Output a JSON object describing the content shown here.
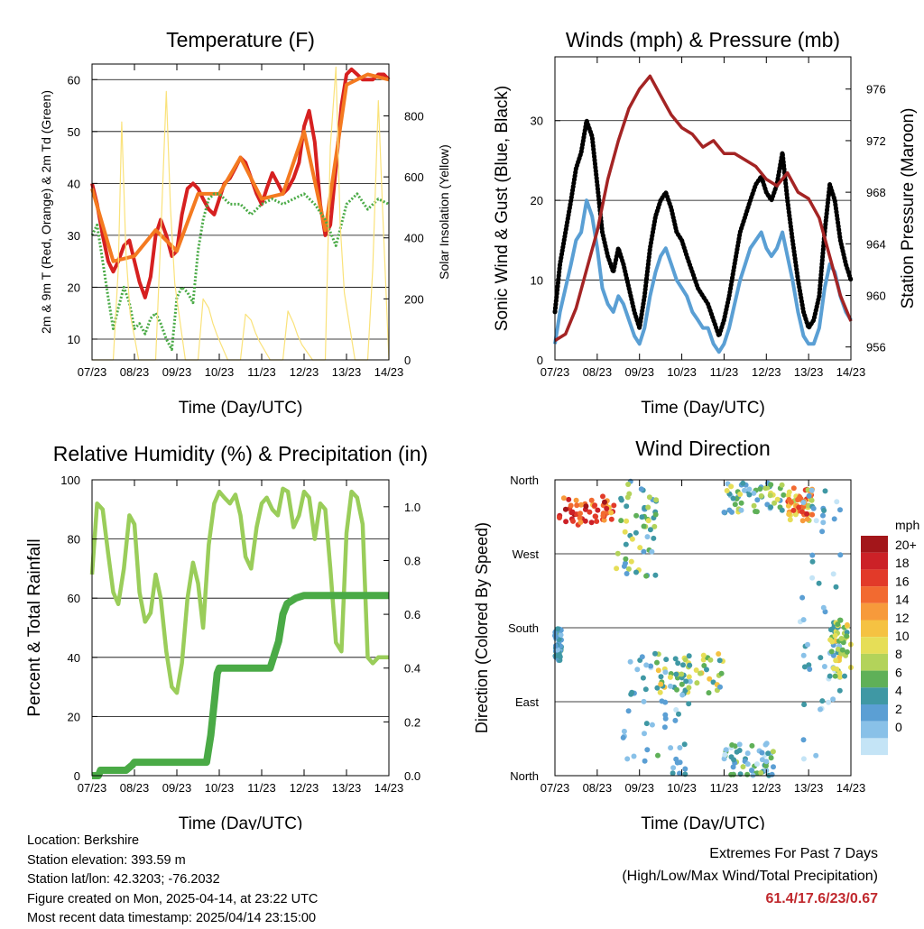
{
  "chart_data": [
    {
      "type": "line",
      "title": "Temperature (F)",
      "xlabel": "Time (Day/UTC)",
      "ylabel": "2m & 9m T (Red, Orange) & 2m Td (Green)",
      "ylabel_right": "Solar Insolation (Yellow)",
      "x_ticks": [
        "07/23",
        "08/23",
        "09/23",
        "10/23",
        "11/23",
        "12/23",
        "13/23",
        "14/23"
      ],
      "ylim": [
        6,
        63
      ],
      "y_ticks": [
        10,
        20,
        30,
        40,
        50,
        60
      ],
      "ylim_right": [
        0,
        970
      ],
      "y_ticks_right": [
        0,
        200,
        400,
        600,
        800
      ],
      "grid": true,
      "series": [
        {
          "name": "2m T",
          "color": "#d62020",
          "x": [
            0,
            0.12,
            0.25,
            0.38,
            0.5,
            0.62,
            0.75,
            0.88,
            1.0,
            1.12,
            1.25,
            1.38,
            1.5,
            1.62,
            1.75,
            1.88,
            2.0,
            2.12,
            2.25,
            2.38,
            2.5,
            2.62,
            2.75,
            2.88,
            3.0,
            3.12,
            3.25,
            3.38,
            3.5,
            3.62,
            3.75,
            3.88,
            4.0,
            4.12,
            4.25,
            4.38,
            4.5,
            4.62,
            4.75,
            4.88,
            5.0,
            5.12,
            5.25,
            5.38,
            5.5,
            5.62,
            5.75,
            5.88,
            6.0,
            6.12,
            6.25,
            6.38,
            6.5,
            6.62,
            6.75,
            6.88,
            7.0
          ],
          "values": [
            40,
            36,
            30,
            25,
            23,
            25,
            28,
            29,
            25,
            21,
            18,
            22,
            30,
            33,
            30,
            26,
            27,
            34,
            39,
            40,
            39,
            37,
            35,
            34,
            37,
            40,
            41,
            43,
            45,
            44,
            41,
            38,
            36,
            39,
            42,
            40,
            38,
            39,
            41,
            44,
            51,
            54,
            48,
            36,
            30,
            32,
            43,
            55,
            61,
            62,
            61,
            60,
            60,
            60,
            61,
            61,
            60
          ]
        },
        {
          "name": "9m T",
          "color": "#f47a20",
          "x": [
            0,
            0.5,
            1.0,
            1.5,
            2.0,
            2.5,
            3.0,
            3.5,
            4.0,
            4.5,
            5.0,
            5.5,
            6.0,
            6.5,
            7.0
          ],
          "values": [
            39,
            25,
            26,
            31,
            27,
            38,
            38,
            45,
            37,
            38,
            50,
            31,
            59,
            61,
            60
          ]
        },
        {
          "name": "2m Td",
          "color": "#4aaa46",
          "x": [
            0,
            0.12,
            0.25,
            0.38,
            0.5,
            0.62,
            0.75,
            0.88,
            1.0,
            1.12,
            1.25,
            1.38,
            1.5,
            1.62,
            1.75,
            1.88,
            2.0,
            2.12,
            2.25,
            2.38,
            2.5,
            2.62,
            2.75,
            2.88,
            3.0,
            3.25,
            3.5,
            3.75,
            4.0,
            4.25,
            4.5,
            4.75,
            5.0,
            5.25,
            5.5,
            5.75,
            6.0,
            6.25,
            6.5,
            6.75,
            7.0
          ],
          "values": [
            30,
            32,
            25,
            18,
            12,
            16,
            20,
            17,
            12,
            13,
            11,
            14,
            15,
            13,
            10,
            8,
            18,
            20,
            19,
            17,
            27,
            33,
            37,
            38,
            38,
            36,
            36,
            34,
            36,
            37,
            36,
            37,
            38,
            36,
            33,
            28,
            36,
            38,
            35,
            37,
            36
          ]
        },
        {
          "name": "Solar Insolation",
          "axis": "right",
          "color": "#fae27a",
          "x": [
            0,
            0.5,
            0.62,
            0.7,
            0.8,
            0.9,
            1.1,
            1.5,
            1.62,
            1.75,
            1.85,
            1.95,
            2.2,
            2.5,
            2.62,
            2.75,
            2.85,
            2.95,
            3.2,
            3.5,
            3.62,
            3.75,
            3.85,
            3.95,
            4.2,
            4.5,
            4.62,
            4.75,
            4.85,
            4.95,
            5.2,
            5.5,
            5.62,
            5.75,
            5.85,
            5.95,
            6.2,
            6.5,
            6.62,
            6.75,
            6.85,
            7.0
          ],
          "values": [
            0,
            0,
            300,
            780,
            350,
            150,
            0,
            0,
            400,
            880,
            500,
            250,
            0,
            0,
            200,
            170,
            120,
            80,
            0,
            0,
            150,
            130,
            90,
            60,
            0,
            0,
            160,
            120,
            80,
            50,
            0,
            0,
            700,
            960,
            450,
            220,
            0,
            0,
            300,
            850,
            500,
            0
          ]
        }
      ]
    },
    {
      "type": "line",
      "title": "Winds (mph) & Pressure (mb)",
      "xlabel": "Time (Day/UTC)",
      "ylabel": "Sonic Wind & Gust (Blue, Black)",
      "ylabel_right": "Station Pressure (Maroon)",
      "x_ticks": [
        "07/23",
        "08/23",
        "09/23",
        "10/23",
        "11/23",
        "12/23",
        "13/23",
        "14/23"
      ],
      "ylim": [
        0,
        38
      ],
      "y_ticks": [
        0,
        10,
        20,
        30
      ],
      "ylim_right": [
        955,
        978.5
      ],
      "y_ticks_right": [
        956,
        960,
        964,
        968,
        972,
        976
      ],
      "grid": true,
      "series": [
        {
          "name": "Sonic Wind",
          "color": "#5a9fd4",
          "x": [
            0,
            0.12,
            0.25,
            0.38,
            0.5,
            0.62,
            0.75,
            0.88,
            1.0,
            1.12,
            1.25,
            1.38,
            1.5,
            1.62,
            1.75,
            1.88,
            2.0,
            2.12,
            2.25,
            2.38,
            2.5,
            2.62,
            2.75,
            2.88,
            3.0,
            3.12,
            3.25,
            3.38,
            3.5,
            3.62,
            3.75,
            3.88,
            4.0,
            4.12,
            4.25,
            4.38,
            4.5,
            4.62,
            4.75,
            4.88,
            5.0,
            5.12,
            5.25,
            5.38,
            5.5,
            5.62,
            5.75,
            5.88,
            6.0,
            6.12,
            6.25,
            6.38,
            6.5,
            6.62,
            6.75,
            6.88,
            7.0
          ],
          "values": [
            2,
            6,
            9,
            12,
            15,
            16,
            20,
            18,
            14,
            9,
            7,
            6,
            8,
            7,
            5,
            3,
            2,
            4,
            8,
            11,
            13,
            14,
            12,
            10,
            9,
            8,
            6,
            5,
            4,
            4,
            2,
            1,
            2,
            4,
            7,
            10,
            12,
            14,
            15,
            16,
            14,
            13,
            14,
            16,
            13,
            10,
            6,
            3,
            2,
            2,
            4,
            9,
            12,
            11,
            8,
            6,
            5
          ]
        },
        {
          "name": "Gust",
          "color": "#000000",
          "x": [
            0,
            0.12,
            0.25,
            0.38,
            0.5,
            0.62,
            0.75,
            0.88,
            1.0,
            1.12,
            1.25,
            1.38,
            1.5,
            1.62,
            1.75,
            1.88,
            2.0,
            2.12,
            2.25,
            2.38,
            2.5,
            2.62,
            2.75,
            2.88,
            3.0,
            3.12,
            3.25,
            3.38,
            3.5,
            3.62,
            3.75,
            3.88,
            4.0,
            4.12,
            4.25,
            4.38,
            4.5,
            4.62,
            4.75,
            4.88,
            5.0,
            5.12,
            5.25,
            5.38,
            5.5,
            5.62,
            5.75,
            5.88,
            6.0,
            6.12,
            6.25,
            6.38,
            6.5,
            6.62,
            6.75,
            6.88,
            7.0
          ],
          "values": [
            6,
            12,
            16,
            20,
            24,
            26,
            30,
            28,
            22,
            16,
            13,
            11,
            14,
            12,
            9,
            6,
            4,
            8,
            14,
            18,
            20,
            21,
            19,
            16,
            15,
            13,
            11,
            9,
            8,
            7,
            5,
            3,
            5,
            8,
            12,
            16,
            18,
            20,
            22,
            23,
            21,
            20,
            22,
            26,
            20,
            15,
            10,
            6,
            4,
            5,
            8,
            16,
            22,
            20,
            15,
            12,
            10
          ]
        },
        {
          "name": "Station Pressure",
          "axis": "right",
          "color": "#a42424",
          "x": [
            0,
            0.25,
            0.5,
            0.75,
            1.0,
            1.25,
            1.5,
            1.75,
            2.0,
            2.25,
            2.5,
            2.75,
            3.0,
            3.25,
            3.5,
            3.75,
            4.0,
            4.25,
            4.5,
            4.75,
            5.0,
            5.25,
            5.5,
            5.75,
            6.0,
            6.25,
            6.5,
            6.75,
            7.0
          ],
          "values": [
            956.5,
            957,
            959,
            962,
            965,
            969,
            972,
            974.5,
            976,
            977,
            975.5,
            974,
            973,
            972.5,
            971.5,
            972,
            971,
            971,
            970.5,
            970,
            969,
            968.5,
            969.5,
            968,
            967.5,
            966,
            963,
            960,
            958
          ]
        }
      ]
    },
    {
      "type": "line",
      "title": "Relative Humidity (%) & Precipitation (in)",
      "xlabel": "Time (Day/UTC)",
      "ylabel": "Percent & Total Rainfall",
      "x_ticks": [
        "07/23",
        "08/23",
        "09/23",
        "10/23",
        "11/23",
        "12/23",
        "13/23",
        "14/23"
      ],
      "ylim": [
        0,
        100
      ],
      "y_ticks": [
        0,
        20,
        40,
        60,
        80,
        100
      ],
      "ylim_right": [
        0,
        1.1
      ],
      "y_ticks_right": [
        "0.0",
        "0.2",
        "0.4",
        "0.6",
        "0.8",
        "1.0"
      ],
      "grid": true,
      "series": [
        {
          "name": "Relative Humidity",
          "color": "#9acd5a",
          "x": [
            0,
            0.12,
            0.25,
            0.38,
            0.5,
            0.62,
            0.75,
            0.88,
            1.0,
            1.12,
            1.25,
            1.38,
            1.5,
            1.62,
            1.75,
            1.88,
            2.0,
            2.12,
            2.25,
            2.38,
            2.5,
            2.62,
            2.75,
            2.88,
            3.0,
            3.12,
            3.25,
            3.38,
            3.5,
            3.62,
            3.75,
            3.88,
            4.0,
            4.12,
            4.25,
            4.38,
            4.5,
            4.62,
            4.75,
            4.88,
            5.0,
            5.12,
            5.25,
            5.38,
            5.5,
            5.62,
            5.75,
            5.88,
            6.0,
            6.12,
            6.25,
            6.38,
            6.5,
            6.62,
            6.75,
            6.88,
            7.0
          ],
          "values": [
            68,
            92,
            90,
            75,
            62,
            58,
            70,
            88,
            85,
            62,
            52,
            55,
            68,
            60,
            42,
            30,
            28,
            38,
            60,
            72,
            65,
            50,
            78,
            92,
            96,
            94,
            92,
            95,
            88,
            74,
            70,
            84,
            92,
            94,
            90,
            88,
            97,
            96,
            84,
            88,
            96,
            94,
            80,
            92,
            90,
            70,
            45,
            42,
            82,
            96,
            94,
            85,
            40,
            38,
            40,
            40,
            40
          ]
        },
        {
          "name": "Total Rainfall",
          "axis": "right",
          "color": "#4aaa46",
          "x": [
            0,
            0.15,
            0.2,
            0.8,
            0.95,
            1.0,
            2.0,
            2.7,
            2.8,
            2.9,
            2.95,
            3.0,
            4.0,
            4.2,
            4.4,
            4.5,
            4.6,
            4.8,
            5.0,
            6.0,
            6.5,
            7.0
          ],
          "values": [
            0,
            0,
            0.02,
            0.02,
            0.04,
            0.05,
            0.05,
            0.05,
            0.15,
            0.3,
            0.38,
            0.4,
            0.4,
            0.4,
            0.5,
            0.6,
            0.64,
            0.66,
            0.67,
            0.67,
            0.67,
            0.67
          ]
        }
      ]
    },
    {
      "type": "scatter",
      "title": "Wind Direction",
      "xlabel": "Time (Day/UTC)",
      "ylabel": "Direction (Colored By Speed)",
      "x_ticks": [
        "07/23",
        "08/23",
        "09/23",
        "10/23",
        "11/23",
        "12/23",
        "13/23",
        "14/23"
      ],
      "y_tick_labels": [
        "North",
        "East",
        "South",
        "West",
        "North"
      ],
      "ylim": [
        0,
        360
      ],
      "grid": true,
      "colorbar": {
        "title": "mph",
        "labels": [
          "20+",
          "18",
          "16",
          "14",
          "12",
          "10",
          "8",
          "6",
          "4",
          "2",
          "0"
        ],
        "colors": [
          "#a3161a",
          "#cc2127",
          "#e23a29",
          "#f26a30",
          "#f79a3b",
          "#f5c242",
          "#e6de57",
          "#b3d35a",
          "#5fb058",
          "#3f98a4",
          "#5b9fd4",
          "#89c1e8",
          "#c4e4f6"
        ]
      },
      "clusters": [
        {
          "x": [
            0.1,
            1.4
          ],
          "dir": [
            305,
            340
          ],
          "speed": [
            12,
            20
          ]
        },
        {
          "x": [
            1.45,
            2.4
          ],
          "dir": [
            240,
            360
          ],
          "speed": [
            2,
            10
          ]
        },
        {
          "x": [
            2.4,
            4.0
          ],
          "dir": [
            100,
            150
          ],
          "speed": [
            4,
            12
          ]
        },
        {
          "x": [
            1.6,
            3.2
          ],
          "dir": [
            0,
            150
          ],
          "speed": [
            0,
            6
          ]
        },
        {
          "x": [
            4.0,
            5.5
          ],
          "dir": [
            320,
            360
          ],
          "speed": [
            2,
            10
          ]
        },
        {
          "x": [
            5.5,
            6.1
          ],
          "dir": [
            310,
            350
          ],
          "speed": [
            8,
            18
          ]
        },
        {
          "x": [
            5.8,
            6.8
          ],
          "dir": [
            0,
            360
          ],
          "speed": [
            0,
            6
          ]
        },
        {
          "x": [
            4.0,
            5.2
          ],
          "dir": [
            0,
            40
          ],
          "speed": [
            0,
            8
          ]
        },
        {
          "x": [
            6.5,
            7.0
          ],
          "dir": [
            120,
            190
          ],
          "speed": [
            4,
            12
          ]
        },
        {
          "x": [
            0.0,
            0.15
          ],
          "dir": [
            140,
            180
          ],
          "speed": [
            2,
            6
          ]
        }
      ]
    }
  ],
  "footer": {
    "location": "Location: Berkshire",
    "elevation": "Station elevation: 393.59 m",
    "latlon": "Station lat/lon: 42.3203; -76.2032",
    "created": "Figure created on Mon, 2025-04-14, at 23:22 UTC",
    "recent": "Most recent data timestamp: 2025/04/14 23:15:00",
    "extremes_title": "Extremes For Past 7 Days",
    "extremes_subtitle": "(High/Low/Max Wind/Total Precipitation)",
    "extremes_values": "61.4/17.6/23/0.67"
  }
}
